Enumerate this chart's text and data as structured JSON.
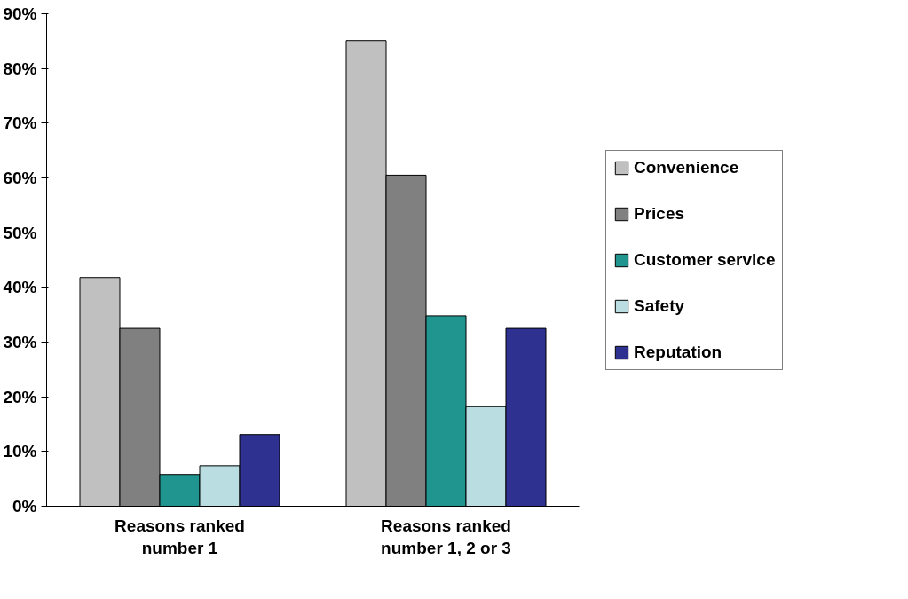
{
  "chart_data": {
    "type": "bar",
    "categories": [
      "Reasons ranked number 1",
      "Reasons ranked number 1, 2 or 3"
    ],
    "series": [
      {
        "name": "Convenience",
        "color": "#c0c0c0",
        "values": [
          41.8,
          85.1
        ]
      },
      {
        "name": "Prices",
        "color": "#808080",
        "values": [
          32.5,
          60.5
        ]
      },
      {
        "name": "Customer service",
        "color": "#20958f",
        "values": [
          5.8,
          34.8
        ]
      },
      {
        "name": "Safety",
        "color": "#b9dde0",
        "values": [
          7.4,
          18.2
        ]
      },
      {
        "name": "Reputation",
        "color": "#2e3190",
        "values": [
          13.1,
          32.5
        ]
      }
    ],
    "ylim": [
      0,
      90
    ],
    "yticks": [
      {
        "value": 0,
        "label": "0%"
      },
      {
        "value": 10,
        "label": "10%"
      },
      {
        "value": 20,
        "label": "20%"
      },
      {
        "value": 30,
        "label": "30%"
      },
      {
        "value": 40,
        "label": "40%"
      },
      {
        "value": 50,
        "label": "50%"
      },
      {
        "value": 60,
        "label": "60%"
      },
      {
        "value": 70,
        "label": "70%"
      },
      {
        "value": 80,
        "label": "80%"
      },
      {
        "value": 90,
        "label": "90%"
      }
    ],
    "grid": false,
    "legend": "right"
  }
}
